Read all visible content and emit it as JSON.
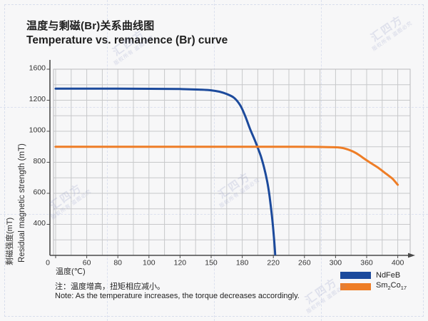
{
  "header": {
    "title_cn": "温度与剩磁(Br)关系曲线图",
    "title_en": "Temperature vs. remanence (Br) curve"
  },
  "note": {
    "line_cn": "注：温度增高，扭矩相应减小。",
    "line_en": "Note: As the temperature increases, the torque decreases accordingly."
  },
  "watermark": {
    "line1": "汇四方",
    "line2": "版权所有 盗图必究"
  },
  "colors": {
    "ndfeb_blue": "#1c4a9c",
    "sm2co17_orange": "#ee7d26",
    "grid": "#c7c8ca",
    "plot_border": "#b9babc",
    "axis": "#4a4a4a",
    "tick_text": "#333333"
  },
  "chart_data": {
    "type": "line",
    "title": "Temperature vs. remanence (Br) curve",
    "xlabel": "温度(℃)",
    "ylabel_cn": "剩磁强度(mT)",
    "ylabel_en": "Residual magnetic strength (mT)",
    "x_ticks": [
      0,
      60,
      80,
      100,
      120,
      150,
      180,
      220,
      260,
      300,
      360,
      400
    ],
    "y_ticks": [
      1600,
      1200,
      1000,
      800,
      600,
      400
    ],
    "x_ticks_evenly_spaced_by_index": true,
    "grid": true,
    "legend_position": "bottom-right",
    "series": [
      {
        "name": "NdFeB",
        "color": "#1c4a9c",
        "label_parts": [
          [
            "t",
            "NdFeB"
          ]
        ],
        "points": [
          [
            0,
            1350
          ],
          [
            30,
            1350
          ],
          [
            60,
            1350
          ],
          [
            90,
            1348
          ],
          [
            120,
            1344
          ],
          [
            140,
            1336
          ],
          [
            150,
            1328
          ],
          [
            158,
            1310
          ],
          [
            165,
            1280
          ],
          [
            172,
            1232
          ],
          [
            178,
            1168
          ],
          [
            184,
            1095
          ],
          [
            190,
            1015
          ],
          [
            196,
            945
          ],
          [
            200,
            893
          ],
          [
            204,
            838
          ],
          [
            208,
            768
          ],
          [
            212,
            678
          ],
          [
            215,
            585
          ],
          [
            218,
            462
          ],
          [
            220,
            360
          ],
          [
            221,
            300
          ],
          [
            222,
            232
          ],
          [
            223,
            150
          ],
          [
            224,
            60
          ]
        ]
      },
      {
        "name": "Sm2Co17",
        "color": "#ee7d26",
        "label_parts": [
          [
            "t",
            "Sm"
          ],
          [
            "sub",
            "2"
          ],
          [
            "t",
            "Co"
          ],
          [
            "sub",
            "17"
          ]
        ],
        "points": [
          [
            0,
            900
          ],
          [
            50,
            900
          ],
          [
            100,
            900
          ],
          [
            150,
            900
          ],
          [
            200,
            900
          ],
          [
            250,
            900
          ],
          [
            290,
            898
          ],
          [
            305,
            896
          ],
          [
            315,
            891
          ],
          [
            325,
            881
          ],
          [
            335,
            867
          ],
          [
            345,
            848
          ],
          [
            355,
            824
          ],
          [
            365,
            796
          ],
          [
            375,
            764
          ],
          [
            385,
            726
          ],
          [
            393,
            695
          ],
          [
            400,
            655
          ]
        ]
      }
    ]
  }
}
